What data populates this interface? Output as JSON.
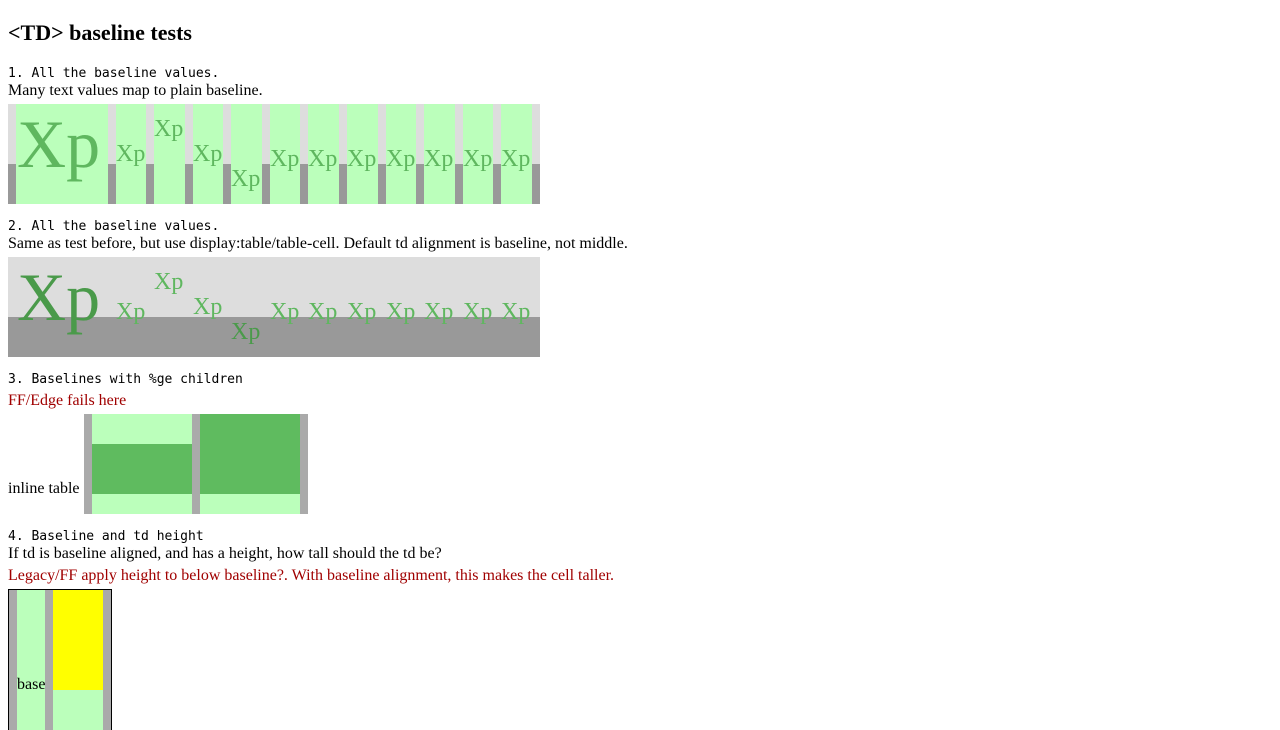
{
  "page_title": "<TD> baseline tests",
  "tests": [
    {
      "heading": "1. All the baseline values.",
      "description": "Many text values map to plain baseline.",
      "sample_text": "Xp"
    },
    {
      "heading": "2. All the baseline values.",
      "description": "Same as test before, but use display:table/table-cell. Default td alignment is baseline, not middle.",
      "sample_text": "Xp"
    },
    {
      "heading": "3. Baselines with %ge children",
      "note": "FF/Edge fails here",
      "inline_label": "inline table"
    },
    {
      "heading": "4. Baseline and td height",
      "description": "If td is baseline aligned, and has a height, how tall should the td be?",
      "note": "Legacy/FF apply height to below baseline?. With baseline alignment, this makes the cell taller.",
      "cell_label": "base"
    }
  ],
  "colors": {
    "cell_green_light": "#bbffbb",
    "cell_green_dark": "#5fbb5f",
    "table_grey_light": "#dddddd",
    "table_grey_dark": "#999999",
    "border_grey": "#aaaaaa",
    "yellow": "#ffff00",
    "note_red": "#a00000"
  }
}
